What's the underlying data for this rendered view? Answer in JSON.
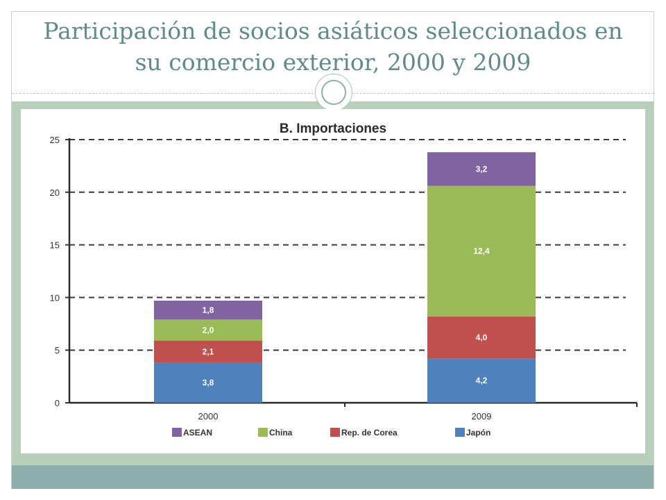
{
  "slide": {
    "title_line1": "Participación de socios asiáticos seleccionados en",
    "title_line2": "su comercio exterior, 2000 y 2009",
    "colors": {
      "title": "#5f8b8b",
      "band_green": "#b8cfbc",
      "band_teal": "#8eaead"
    }
  },
  "chart_data": {
    "type": "bar",
    "stacked": true,
    "title": "B. Importaciones",
    "xlabel": "",
    "ylabel": "",
    "ylim": [
      0,
      25
    ],
    "yticks": [
      0,
      5,
      10,
      15,
      20,
      25
    ],
    "grid": "dashed horizontal",
    "legend_position": "bottom",
    "categories": [
      "2000",
      "2009"
    ],
    "series": [
      {
        "name": "Japón",
        "values": [
          3.8,
          4.2
        ],
        "labels": [
          "3,8",
          "4,2"
        ],
        "color": "#4f81bd"
      },
      {
        "name": "Rep. de Corea",
        "values": [
          2.1,
          4.0
        ],
        "labels": [
          "2,1",
          "4,0"
        ],
        "color": "#c0504d"
      },
      {
        "name": "China",
        "values": [
          2.0,
          12.4
        ],
        "labels": [
          "2,0",
          "12,4"
        ],
        "color": "#9bbb59"
      },
      {
        "name": "ASEAN",
        "values": [
          1.8,
          3.2
        ],
        "labels": [
          "1,8",
          "3,2"
        ],
        "color": "#8064a2"
      }
    ],
    "legend_order": [
      "ASEAN",
      "China",
      "Rep. de Corea",
      "Japón"
    ]
  }
}
